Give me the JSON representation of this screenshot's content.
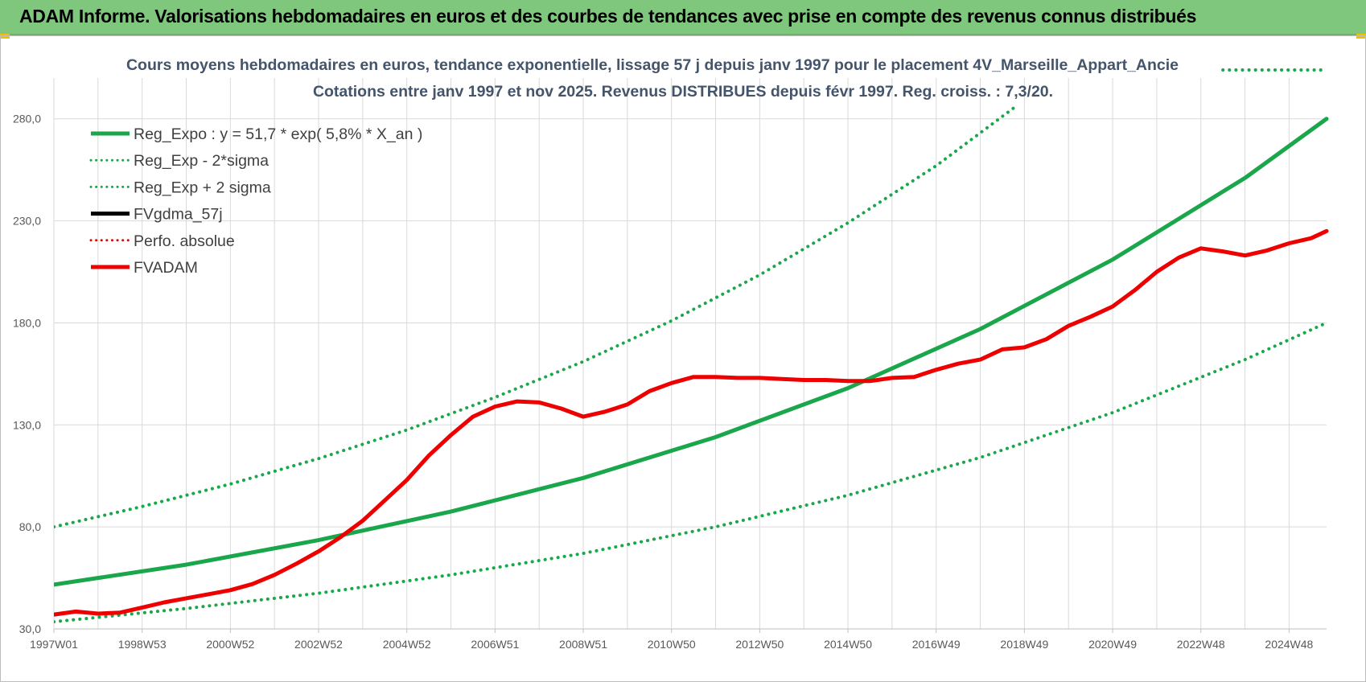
{
  "banner": {
    "title": "ADAM Informe. Valorisations hebdomadaires en euros et des courbes de tendances avec prise en compte des revenus connus distribués"
  },
  "colors": {
    "banner_bg": "#7fc77c",
    "green": "#1aa64a",
    "red": "#ee0000",
    "black": "#000000",
    "grid": "#d9d9d9"
  },
  "chart_data": {
    "type": "line",
    "title": "Cours moyens hebdomadaires en euros, tendance exponentielle, lissage 57 j depuis janv 1997 pour le placement 4V_Marseille_Appart_Ancie",
    "subtitle": "Cotations entre janv 1997 et nov 2025. Revenus DISTRIBUES depuis févr 1997. Reg. croiss. : 7,3/20.",
    "xlabel": "",
    "ylabel": "",
    "grid": true,
    "legend_position": "top-left",
    "xlim": [
      1997.0,
      2025.85
    ],
    "ylim": [
      30,
      300
    ],
    "x_ticks": [
      {
        "x": 1997.0,
        "label": "1997W01"
      },
      {
        "x": 1999.0,
        "label": "1998W53"
      },
      {
        "x": 2001.0,
        "label": "2000W52"
      },
      {
        "x": 2003.0,
        "label": "2002W52"
      },
      {
        "x": 2005.0,
        "label": "2004W52"
      },
      {
        "x": 2007.0,
        "label": "2006W51"
      },
      {
        "x": 2009.0,
        "label": "2008W51"
      },
      {
        "x": 2011.0,
        "label": "2010W50"
      },
      {
        "x": 2013.0,
        "label": "2012W50"
      },
      {
        "x": 2015.0,
        "label": "2014W50"
      },
      {
        "x": 2017.0,
        "label": "2016W49"
      },
      {
        "x": 2019.0,
        "label": "2018W49"
      },
      {
        "x": 2021.0,
        "label": "2020W49"
      },
      {
        "x": 2023.0,
        "label": "2022W48"
      },
      {
        "x": 2025.0,
        "label": "2024W48"
      }
    ],
    "y_ticks": [
      {
        "y": 30,
        "label": "30,0"
      },
      {
        "y": 80,
        "label": "80,0"
      },
      {
        "y": 130,
        "label": "130,0"
      },
      {
        "y": 180,
        "label": "180,0"
      },
      {
        "y": 230,
        "label": "230,0"
      },
      {
        "y": 280,
        "label": "280,0"
      }
    ],
    "series": [
      {
        "name": "Reg_Expo : y = 51,7 * exp( 5,8% *  X_an )",
        "style": "solid",
        "color": "#1aa64a",
        "x": [
          1997.0,
          2000.0,
          2003.0,
          2006.0,
          2009.0,
          2012.0,
          2015.0,
          2018.0,
          2021.0,
          2024.0,
          2025.85
        ],
        "y": [
          51.7,
          61.5,
          73.5,
          87.5,
          104.0,
          124.0,
          148.0,
          177.0,
          211.0,
          251.0,
          280.0
        ]
      },
      {
        "name": "Reg_Exp - 2*sigma",
        "style": "dotted",
        "color": "#1aa64a",
        "x": [
          1997.0,
          2000.0,
          2003.0,
          2006.0,
          2009.0,
          2012.0,
          2015.0,
          2018.0,
          2021.0,
          2024.0,
          2025.85
        ],
        "y": [
          33.5,
          40.0,
          47.5,
          56.5,
          67.0,
          80.0,
          95.5,
          114.0,
          136.0,
          162.0,
          180.0
        ]
      },
      {
        "name": "Reg_Exp + 2 sigma",
        "style": "dotted",
        "color": "#1aa64a",
        "x": [
          1997.0,
          1999.0,
          2001.0,
          2003.0,
          2005.0,
          2007.0,
          2009.0,
          2011.0,
          2013.0,
          2015.0,
          2017.0,
          2018.8
        ],
        "y": [
          80.0,
          90.0,
          101.0,
          113.5,
          127.5,
          143.5,
          161.0,
          181.0,
          203.5,
          229.0,
          257.0,
          286.0
        ]
      },
      {
        "name": "FVgdma_57j",
        "style": "solid",
        "color": "#000000",
        "x": [
          1997.0,
          1997.5,
          1998.0,
          1998.5,
          1999.0,
          1999.5,
          2000.0,
          2000.5,
          2001.0,
          2001.5,
          2002.0,
          2002.5,
          2003.0,
          2003.5,
          2004.0,
          2004.5,
          2005.0,
          2005.5,
          2006.0,
          2006.5,
          2007.0,
          2007.5,
          2008.0,
          2008.5,
          2009.0,
          2009.5,
          2010.0,
          2010.5,
          2011.0,
          2011.5,
          2012.0,
          2012.5,
          2013.0,
          2013.5,
          2014.0,
          2014.5,
          2015.0,
          2015.5,
          2016.0,
          2016.5,
          2017.0,
          2017.5,
          2018.0,
          2018.5,
          2019.0,
          2019.5,
          2020.0,
          2020.5,
          2021.0,
          2021.5,
          2022.0,
          2022.5,
          2023.0,
          2023.5,
          2024.0,
          2024.5,
          2025.0,
          2025.5,
          2025.85
        ],
        "y": [
          37.0,
          38.5,
          37.5,
          38.0,
          40.5,
          43.0,
          45.0,
          47.0,
          49.0,
          52.0,
          56.5,
          62.0,
          68.0,
          75.0,
          83.0,
          93.0,
          103.0,
          115.0,
          125.0,
          134.0,
          139.0,
          141.5,
          141.0,
          138.0,
          134.0,
          136.5,
          140.0,
          146.5,
          150.5,
          153.5,
          153.5,
          153.0,
          153.0,
          152.5,
          152.0,
          152.0,
          151.5,
          151.5,
          153.0,
          153.5,
          157.0,
          160.0,
          162.0,
          167.0,
          168.0,
          172.0,
          178.5,
          183.0,
          188.0,
          196.0,
          205.0,
          212.0,
          216.5,
          215.0,
          213.0,
          215.5,
          219.0,
          221.5,
          225.0
        ]
      },
      {
        "name": "Perfo. absolue",
        "style": "dotted",
        "color": "#ee0000",
        "x": [],
        "y": []
      },
      {
        "name": "FVADAM",
        "style": "solid",
        "color": "#ee0000",
        "x": [
          1997.0,
          1997.5,
          1998.0,
          1998.5,
          1999.0,
          1999.5,
          2000.0,
          2000.5,
          2001.0,
          2001.5,
          2002.0,
          2002.5,
          2003.0,
          2003.5,
          2004.0,
          2004.5,
          2005.0,
          2005.5,
          2006.0,
          2006.5,
          2007.0,
          2007.5,
          2008.0,
          2008.5,
          2009.0,
          2009.5,
          2010.0,
          2010.5,
          2011.0,
          2011.5,
          2012.0,
          2012.5,
          2013.0,
          2013.5,
          2014.0,
          2014.5,
          2015.0,
          2015.5,
          2016.0,
          2016.5,
          2017.0,
          2017.5,
          2018.0,
          2018.5,
          2019.0,
          2019.5,
          2020.0,
          2020.5,
          2021.0,
          2021.5,
          2022.0,
          2022.5,
          2023.0,
          2023.5,
          2024.0,
          2024.5,
          2025.0,
          2025.5,
          2025.85
        ],
        "y": [
          37.0,
          38.5,
          37.5,
          38.0,
          40.5,
          43.0,
          45.0,
          47.0,
          49.0,
          52.0,
          56.5,
          62.0,
          68.0,
          75.0,
          83.0,
          93.0,
          103.0,
          115.0,
          125.0,
          134.0,
          139.0,
          141.5,
          141.0,
          138.0,
          134.0,
          136.5,
          140.0,
          146.5,
          150.5,
          153.5,
          153.5,
          153.0,
          153.0,
          152.5,
          152.0,
          152.0,
          151.5,
          151.5,
          153.0,
          153.5,
          157.0,
          160.0,
          162.0,
          167.0,
          168.0,
          172.0,
          178.5,
          183.0,
          188.0,
          196.0,
          205.0,
          212.0,
          216.5,
          215.0,
          213.0,
          215.5,
          219.0,
          221.5,
          225.0
        ]
      }
    ]
  }
}
